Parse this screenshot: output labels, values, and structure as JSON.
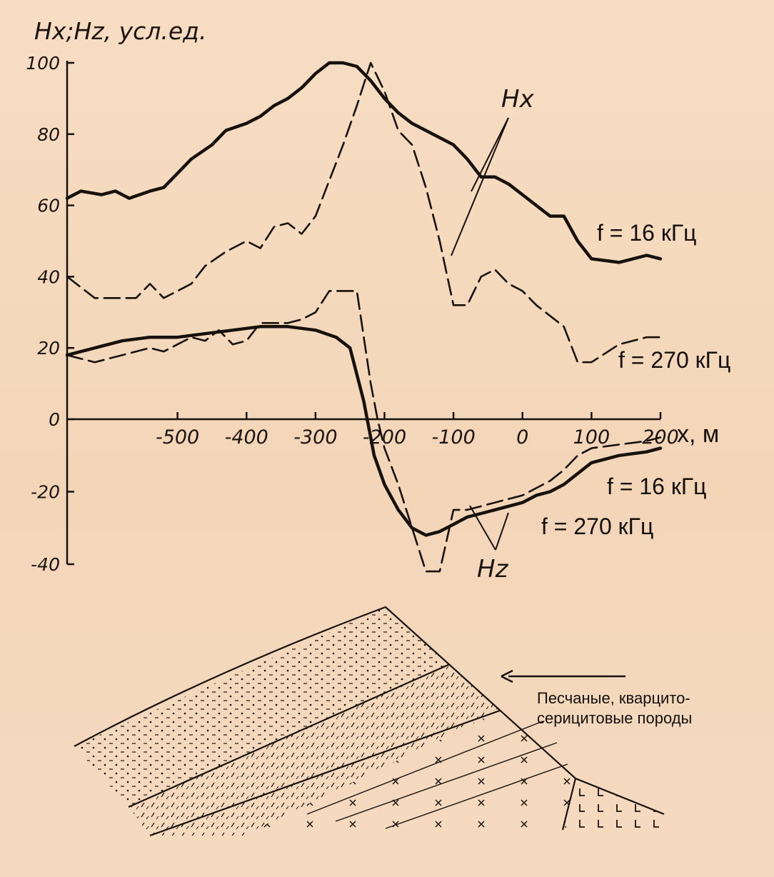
{
  "chart_data": {
    "type": "line",
    "y_axis_label": "Hx;Hz, усл.ед.",
    "x_axis_label": "x, м",
    "xlim": [
      -660,
      200
    ],
    "ylim": [
      -40,
      100
    ],
    "x_ticks": [
      -500,
      -400,
      -300,
      -200,
      -100,
      0,
      100,
      200
    ],
    "x_tick_labels": [
      "-500",
      "-400",
      "-300",
      "-200",
      "-100",
      "0",
      "100",
      "200"
    ],
    "y_ticks": [
      100,
      80,
      60,
      40,
      20,
      0,
      -20,
      -40
    ],
    "y_tick_labels": [
      "100",
      "80",
      "60",
      "40",
      "20",
      "0",
      "-20",
      "-40"
    ],
    "grid": false,
    "series": [
      {
        "component": "Hx",
        "frequency": "f = 16 кГц",
        "style": "solid",
        "x": [
          -660,
          -640,
          -610,
          -590,
          -570,
          -540,
          -520,
          -500,
          -480,
          -450,
          -430,
          -400,
          -380,
          -360,
          -340,
          -320,
          -300,
          -280,
          -260,
          -240,
          -220,
          -200,
          -180,
          -160,
          -140,
          -120,
          -100,
          -80,
          -60,
          -40,
          -20,
          0,
          20,
          40,
          60,
          80,
          100,
          140,
          180,
          200
        ],
        "y": [
          62,
          64,
          63,
          64,
          62,
          64,
          65,
          69,
          73,
          77,
          81,
          83,
          85,
          88,
          90,
          93,
          97,
          100,
          100,
          99,
          95,
          90,
          86,
          83,
          81,
          79,
          77,
          73,
          68,
          68,
          66,
          63,
          60,
          57,
          57,
          50,
          45,
          44,
          46,
          45
        ]
      },
      {
        "component": "Hx",
        "frequency": "f = 270 кГц",
        "style": "dashed",
        "x": [
          -660,
          -640,
          -620,
          -600,
          -580,
          -560,
          -540,
          -520,
          -500,
          -480,
          -460,
          -430,
          -400,
          -380,
          -360,
          -340,
          -320,
          -300,
          -280,
          -260,
          -240,
          -220,
          -200,
          -180,
          -160,
          -140,
          -120,
          -100,
          -80,
          -60,
          -40,
          -20,
          0,
          20,
          40,
          60,
          80,
          100,
          140,
          180,
          200
        ],
        "y": [
          40,
          37,
          34,
          34,
          34,
          34,
          38,
          34,
          36,
          38,
          43,
          47,
          50,
          48,
          54,
          55,
          52,
          57,
          67,
          77,
          88,
          100,
          92,
          81,
          77,
          65,
          50,
          32,
          32,
          40,
          42,
          38,
          36,
          32,
          29,
          26,
          16,
          16,
          21,
          23,
          23
        ]
      },
      {
        "component": "Hz",
        "frequency": "f = 16 кГц",
        "style": "solid",
        "x": [
          -660,
          -620,
          -580,
          -540,
          -500,
          -460,
          -420,
          -380,
          -340,
          -300,
          -270,
          -250,
          -230,
          -215,
          -200,
          -180,
          -160,
          -140,
          -120,
          -100,
          -80,
          -60,
          -40,
          -20,
          0,
          20,
          40,
          60,
          80,
          100,
          140,
          180,
          200
        ],
        "y": [
          18,
          20,
          22,
          23,
          23,
          24,
          25,
          26,
          26,
          25,
          23,
          20,
          5,
          -10,
          -18,
          -25,
          -30,
          -32,
          -31,
          -29,
          -27,
          -26,
          -25,
          -24,
          -23,
          -21,
          -20,
          -18,
          -15,
          -12,
          -10,
          -9,
          -8
        ]
      },
      {
        "component": "Hz",
        "frequency": "f = 270 кГц",
        "style": "dashed",
        "x": [
          -660,
          -640,
          -620,
          -580,
          -540,
          -520,
          -500,
          -480,
          -460,
          -440,
          -420,
          -400,
          -380,
          -360,
          -340,
          -320,
          -300,
          -280,
          -260,
          -240,
          -220,
          -210,
          -200,
          -180,
          -160,
          -140,
          -120,
          -100,
          -80,
          -60,
          -40,
          -20,
          0,
          20,
          40,
          60,
          80,
          100,
          140,
          180,
          200
        ],
        "y": [
          18,
          17,
          16,
          18,
          20,
          19,
          21,
          23,
          22,
          25,
          21,
          22,
          27,
          27,
          27,
          28,
          30,
          36,
          36,
          36,
          10,
          0,
          -8,
          -18,
          -30,
          -42,
          -42,
          -25,
          -25,
          -24,
          -23,
          -22,
          -21,
          -19,
          -17,
          -14,
          -10,
          -8,
          -7,
          -6,
          -5
        ]
      }
    ],
    "annotations": {
      "hx": "Hx",
      "hz": "Hz",
      "hx_16": "f = 16 кГц",
      "hx_270": "f = 270 кГц",
      "hz_16": "f = 16 кГц",
      "hz_270": "f = 270 кГц"
    }
  },
  "geology": {
    "label_line1": "Песчаные, кварцито-",
    "label_line2": "серицитовые породы"
  },
  "colors": {
    "paper": "#f6dcc0",
    "ink": "#17110d"
  }
}
